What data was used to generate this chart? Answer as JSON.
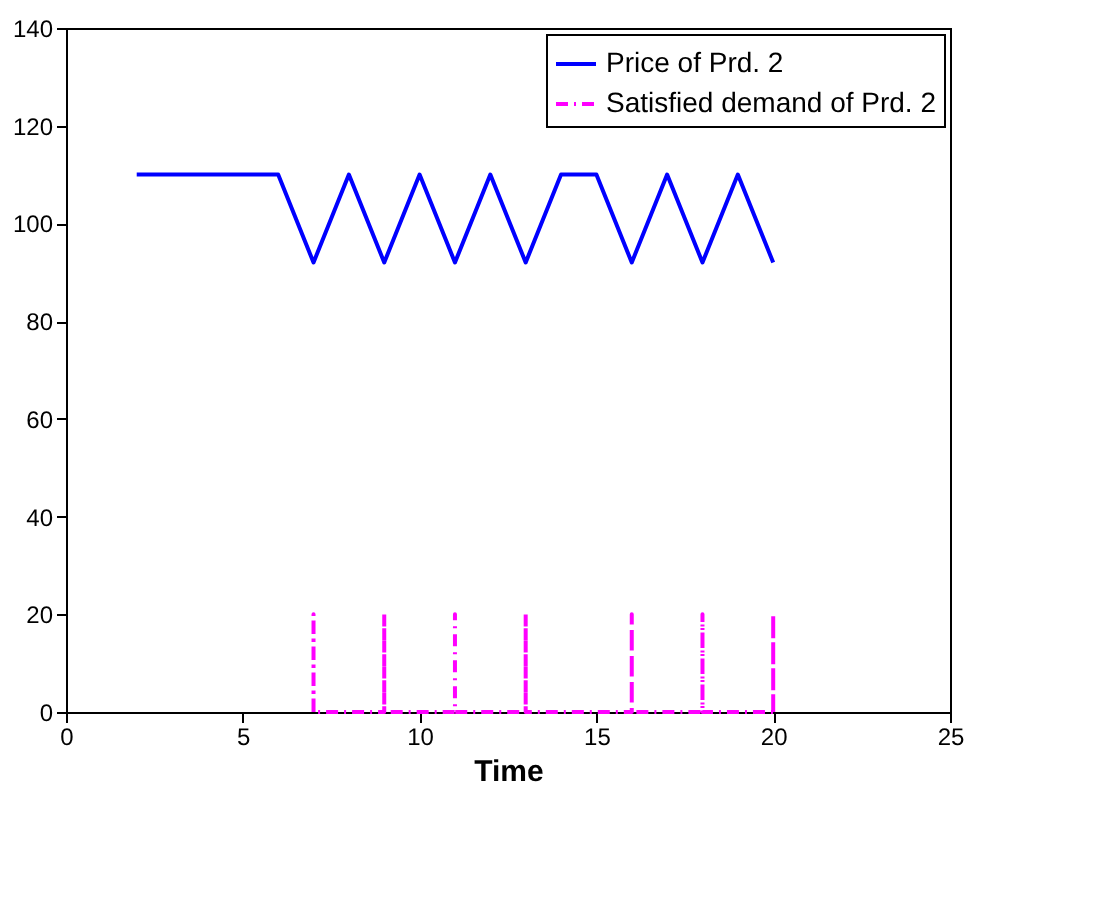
{
  "chart_data": {
    "type": "line",
    "xlabel": "Time",
    "xlim": [
      0,
      25
    ],
    "xticks": [
      0,
      5,
      10,
      15,
      20,
      25
    ],
    "ylim": [
      0,
      140
    ],
    "yticks": [
      0,
      20,
      40,
      60,
      80,
      100,
      120,
      140
    ],
    "grid": false,
    "legend": "top right",
    "marker": "none",
    "series": [
      {
        "name": "Price of Prd. 2",
        "color": "#0000ff",
        "line_style": "solid",
        "x": [
          2,
          6,
          7,
          8,
          9,
          10,
          11,
          12,
          13,
          14,
          15,
          16,
          17,
          18,
          19,
          20
        ],
        "values": [
          110,
          110,
          92,
          110,
          92,
          110,
          92,
          110,
          92,
          110,
          110,
          92,
          110,
          92,
          110,
          92
        ]
      },
      {
        "name": "Satisfied demand of Prd. 2",
        "color": "#ff00ff",
        "line_style": "dashed",
        "x": [
          7,
          7,
          7,
          9,
          9,
          9,
          11,
          11,
          11,
          13,
          13,
          13,
          16,
          16,
          16,
          18,
          18,
          18,
          20,
          20,
          20
        ],
        "values": [
          0,
          20,
          0,
          0,
          20,
          0,
          0,
          20,
          0,
          0,
          20,
          0,
          0,
          20,
          0,
          0,
          20,
          0,
          0,
          20,
          0
        ]
      }
    ]
  }
}
